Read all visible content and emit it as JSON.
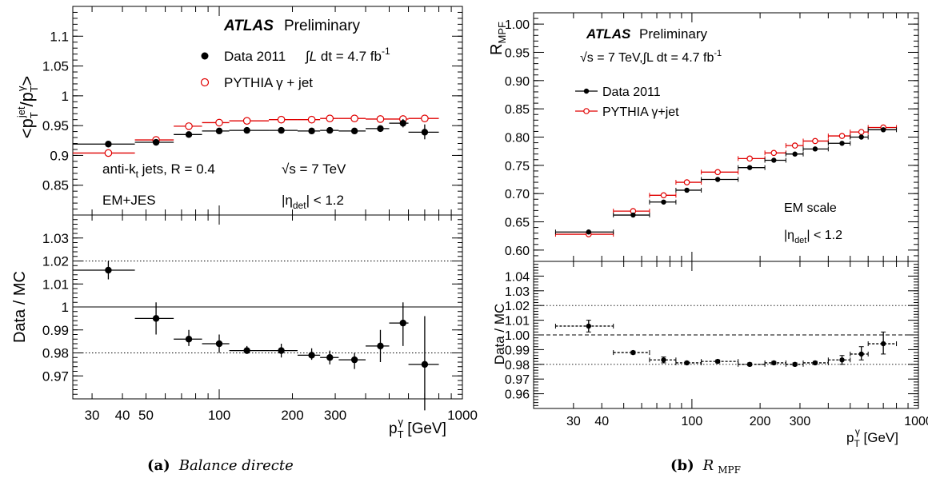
{
  "chart_data": [
    {
      "panel": "a",
      "type": "scatter",
      "caption_tag": "(a)",
      "caption_text": "Balance directe",
      "xlabel": "p_T^γ [GeV]",
      "xscale": "log",
      "xlim": [
        25,
        1000
      ],
      "xticks": [
        30,
        40,
        50,
        100,
        200,
        300,
        1000
      ],
      "xtick_labels": [
        "30",
        "40",
        "50",
        "100",
        "200",
        "300",
        "1000"
      ],
      "top": {
        "ylabel": "<p_T^jet/p_T^γ>",
        "ylim": [
          0.8,
          1.15
        ],
        "yticks": [
          0.85,
          0.9,
          0.95,
          1.0,
          1.05,
          1.1
        ],
        "ytick_labels": [
          "0.85",
          "0.9",
          "0.95",
          "1",
          "1.05",
          "1.1"
        ],
        "annotations": {
          "atlas": "ATLAS",
          "prelim": "Preliminary",
          "lumi": "∫L dt = 4.7 fb⁻¹",
          "algo": "anti-kₜ jets, R = 0.4",
          "sqrt_s": "√s = 7 TeV",
          "calib": "EM+JES",
          "eta": "|η_det| < 1.2"
        },
        "legend": {
          "position": "top-right"
        },
        "series": [
          {
            "name": "Data 2011",
            "color": "#000000",
            "marker": "filled-circle",
            "points": [
              {
                "x": 35,
                "xlo": 25,
                "xhi": 45,
                "y": 0.919
              },
              {
                "x": 55,
                "xlo": 45,
                "xhi": 65,
                "y": 0.922
              },
              {
                "x": 75,
                "xlo": 65,
                "xhi": 85,
                "y": 0.935
              },
              {
                "x": 100,
                "xlo": 85,
                "xhi": 110,
                "y": 0.941
              },
              {
                "x": 130,
                "xlo": 110,
                "xhi": 160,
                "y": 0.942
              },
              {
                "x": 180,
                "xlo": 160,
                "xhi": 210,
                "y": 0.942
              },
              {
                "x": 240,
                "xlo": 210,
                "xhi": 260,
                "y": 0.941
              },
              {
                "x": 285,
                "xlo": 260,
                "xhi": 310,
                "y": 0.942
              },
              {
                "x": 360,
                "xlo": 310,
                "xhi": 400,
                "y": 0.941
              },
              {
                "x": 460,
                "xlo": 400,
                "xhi": 500,
                "y": 0.945
              },
              {
                "x": 570,
                "xlo": 500,
                "xhi": 600,
                "y": 0.954,
                "ylo": 0.947,
                "yhi": 0.961
              },
              {
                "x": 700,
                "xlo": 600,
                "xhi": 800,
                "y": 0.939,
                "ylo": 0.927,
                "yhi": 0.952
              }
            ]
          },
          {
            "name": "PYTHIA γ + jet",
            "color": "#e00000",
            "marker": "open-circle",
            "points": [
              {
                "x": 35,
                "xlo": 25,
                "xhi": 45,
                "y": 0.904
              },
              {
                "x": 55,
                "xlo": 45,
                "xhi": 65,
                "y": 0.926
              },
              {
                "x": 75,
                "xlo": 65,
                "xhi": 85,
                "y": 0.949
              },
              {
                "x": 100,
                "xlo": 85,
                "xhi": 110,
                "y": 0.955
              },
              {
                "x": 130,
                "xlo": 110,
                "xhi": 160,
                "y": 0.958
              },
              {
                "x": 180,
                "xlo": 160,
                "xhi": 210,
                "y": 0.96
              },
              {
                "x": 240,
                "xlo": 210,
                "xhi": 260,
                "y": 0.96
              },
              {
                "x": 285,
                "xlo": 260,
                "xhi": 310,
                "y": 0.962
              },
              {
                "x": 360,
                "xlo": 310,
                "xhi": 400,
                "y": 0.962
              },
              {
                "x": 460,
                "xlo": 400,
                "xhi": 500,
                "y": 0.961
              },
              {
                "x": 570,
                "xlo": 500,
                "xhi": 600,
                "y": 0.961
              },
              {
                "x": 700,
                "xlo": 600,
                "xhi": 800,
                "y": 0.962
              }
            ]
          }
        ]
      },
      "ratio": {
        "ylabel": "Data / MC",
        "ylim": [
          0.96,
          1.04
        ],
        "yticks": [
          0.97,
          0.98,
          0.99,
          1.0,
          1.01,
          1.02,
          1.03
        ],
        "ytick_labels": [
          "0.97",
          "0.98",
          "0.99",
          "1",
          "1.01",
          "1.02",
          "1.03"
        ],
        "reference_lines": [
          {
            "y": 1.0,
            "style": "solid"
          },
          {
            "y": 0.98,
            "style": "dotted"
          },
          {
            "y": 1.02,
            "style": "dotted"
          }
        ],
        "points": [
          {
            "x": 35,
            "xlo": 25,
            "xhi": 45,
            "y": 1.016,
            "ylo": 1.012,
            "yhi": 1.02
          },
          {
            "x": 55,
            "xlo": 45,
            "xhi": 65,
            "y": 0.995,
            "ylo": 0.988,
            "yhi": 1.002
          },
          {
            "x": 75,
            "xlo": 65,
            "xhi": 85,
            "y": 0.986,
            "ylo": 0.983,
            "yhi": 0.99
          },
          {
            "x": 100,
            "xlo": 85,
            "xhi": 110,
            "y": 0.984,
            "ylo": 0.98,
            "yhi": 0.988
          },
          {
            "x": 130,
            "xlo": 110,
            "xhi": 160,
            "y": 0.981,
            "ylo": 0.98,
            "yhi": 0.983
          },
          {
            "x": 180,
            "xlo": 160,
            "xhi": 210,
            "y": 0.981,
            "ylo": 0.978,
            "yhi": 0.984
          },
          {
            "x": 240,
            "xlo": 210,
            "xhi": 260,
            "y": 0.979,
            "ylo": 0.977,
            "yhi": 0.982
          },
          {
            "x": 285,
            "xlo": 260,
            "xhi": 310,
            "y": 0.978,
            "ylo": 0.975,
            "yhi": 0.981
          },
          {
            "x": 360,
            "xlo": 310,
            "xhi": 400,
            "y": 0.977,
            "ylo": 0.973,
            "yhi": 0.98
          },
          {
            "x": 460,
            "xlo": 400,
            "xhi": 500,
            "y": 0.983,
            "ylo": 0.976,
            "yhi": 0.99
          },
          {
            "x": 570,
            "xlo": 500,
            "xhi": 600,
            "y": 0.993,
            "ylo": 0.983,
            "yhi": 1.002
          },
          {
            "x": 700,
            "xlo": 600,
            "xhi": 800,
            "y": 0.975,
            "ylo": 0.955,
            "yhi": 0.996
          }
        ]
      }
    },
    {
      "panel": "b",
      "type": "scatter",
      "caption_tag": "(b)",
      "caption_text": "R",
      "caption_sub": "MPF",
      "xlabel": "p_T^γ [GeV]",
      "xscale": "log",
      "xlim": [
        20,
        1000
      ],
      "xticks": [
        30,
        40,
        100,
        200,
        300,
        1000
      ],
      "xtick_labels": [
        "30",
        "40",
        "100",
        "200",
        "300",
        "1000"
      ],
      "top": {
        "ylabel": "R_MPF",
        "ylim": [
          0.58,
          1.02
        ],
        "yticks": [
          0.6,
          0.65,
          0.7,
          0.75,
          0.8,
          0.85,
          0.9,
          0.95,
          1.0
        ],
        "ytick_labels": [
          "0.60",
          "0.65",
          "0.70",
          "0.75",
          "0.80",
          "0.85",
          "0.90",
          "0.95",
          "1.00"
        ],
        "annotations": {
          "atlas": "ATLAS",
          "prelim": "Preliminary",
          "energy_lumi": "√s = 7 TeV,∫L dt = 4.7 fb⁻¹",
          "calib": "EM scale",
          "eta": "|η_det| < 1.2"
        },
        "legend": {
          "position": "top-left"
        },
        "series": [
          {
            "name": "Data 2011",
            "color": "#000000",
            "marker": "filled-circle",
            "points": [
              {
                "x": 35,
                "xlo": 25,
                "xhi": 45,
                "y": 0.632
              },
              {
                "x": 55,
                "xlo": 45,
                "xhi": 65,
                "y": 0.662
              },
              {
                "x": 75,
                "xlo": 65,
                "xhi": 85,
                "y": 0.685
              },
              {
                "x": 95,
                "xlo": 85,
                "xhi": 110,
                "y": 0.706
              },
              {
                "x": 130,
                "xlo": 110,
                "xhi": 160,
                "y": 0.725
              },
              {
                "x": 180,
                "xlo": 160,
                "xhi": 210,
                "y": 0.746
              },
              {
                "x": 230,
                "xlo": 210,
                "xhi": 260,
                "y": 0.759
              },
              {
                "x": 285,
                "xlo": 260,
                "xhi": 310,
                "y": 0.77
              },
              {
                "x": 350,
                "xlo": 310,
                "xhi": 400,
                "y": 0.779
              },
              {
                "x": 460,
                "xlo": 400,
                "xhi": 500,
                "y": 0.789
              },
              {
                "x": 560,
                "xlo": 500,
                "xhi": 600,
                "y": 0.8
              },
              {
                "x": 700,
                "xlo": 600,
                "xhi": 800,
                "y": 0.813
              }
            ]
          },
          {
            "name": "PYTHIA γ+jet",
            "color": "#e00000",
            "marker": "open-circle",
            "points": [
              {
                "x": 35,
                "xlo": 25,
                "xhi": 45,
                "y": 0.628
              },
              {
                "x": 55,
                "xlo": 45,
                "xhi": 65,
                "y": 0.669
              },
              {
                "x": 75,
                "xlo": 65,
                "xhi": 85,
                "y": 0.697
              },
              {
                "x": 95,
                "xlo": 85,
                "xhi": 110,
                "y": 0.72
              },
              {
                "x": 130,
                "xlo": 110,
                "xhi": 160,
                "y": 0.738
              },
              {
                "x": 180,
                "xlo": 160,
                "xhi": 210,
                "y": 0.762
              },
              {
                "x": 230,
                "xlo": 210,
                "xhi": 260,
                "y": 0.772
              },
              {
                "x": 285,
                "xlo": 260,
                "xhi": 310,
                "y": 0.785
              },
              {
                "x": 350,
                "xlo": 310,
                "xhi": 400,
                "y": 0.793
              },
              {
                "x": 460,
                "xlo": 400,
                "xhi": 500,
                "y": 0.802
              },
              {
                "x": 560,
                "xlo": 500,
                "xhi": 600,
                "y": 0.809
              },
              {
                "x": 700,
                "xlo": 600,
                "xhi": 800,
                "y": 0.817
              }
            ]
          }
        ]
      },
      "ratio": {
        "ylabel": "Data / MC",
        "ylim": [
          0.95,
          1.05
        ],
        "yticks": [
          0.96,
          0.97,
          0.98,
          0.99,
          1.0,
          1.01,
          1.02,
          1.03,
          1.04
        ],
        "ytick_labels": [
          "0.96",
          "0.97",
          "0.98",
          "0.99",
          "1.00",
          "1.01",
          "1.02",
          "1.03",
          "1.04"
        ],
        "reference_lines": [
          {
            "y": 1.0,
            "style": "dashed"
          },
          {
            "y": 0.98,
            "style": "dotted"
          },
          {
            "y": 1.02,
            "style": "dotted"
          }
        ],
        "points": [
          {
            "x": 35,
            "xlo": 25,
            "xhi": 45,
            "y": 1.006,
            "ylo": 1.002,
            "yhi": 1.01
          },
          {
            "x": 55,
            "xlo": 45,
            "xhi": 65,
            "y": 0.988,
            "ylo": 0.987,
            "yhi": 0.989
          },
          {
            "x": 75,
            "xlo": 65,
            "xhi": 85,
            "y": 0.983,
            "ylo": 0.981,
            "yhi": 0.985
          },
          {
            "x": 95,
            "xlo": 85,
            "xhi": 110,
            "y": 0.981,
            "ylo": 0.98,
            "yhi": 0.982
          },
          {
            "x": 130,
            "xlo": 110,
            "xhi": 160,
            "y": 0.982,
            "ylo": 0.981,
            "yhi": 0.983
          },
          {
            "x": 180,
            "xlo": 160,
            "xhi": 210,
            "y": 0.98,
            "ylo": 0.979,
            "yhi": 0.981
          },
          {
            "x": 230,
            "xlo": 210,
            "xhi": 260,
            "y": 0.981,
            "ylo": 0.98,
            "yhi": 0.982
          },
          {
            "x": 285,
            "xlo": 260,
            "xhi": 310,
            "y": 0.98,
            "ylo": 0.979,
            "yhi": 0.981
          },
          {
            "x": 350,
            "xlo": 310,
            "xhi": 400,
            "y": 0.981,
            "ylo": 0.98,
            "yhi": 0.982
          },
          {
            "x": 460,
            "xlo": 400,
            "xhi": 500,
            "y": 0.983,
            "ylo": 0.98,
            "yhi": 0.986
          },
          {
            "x": 560,
            "xlo": 500,
            "xhi": 600,
            "y": 0.987,
            "ylo": 0.983,
            "yhi": 0.992
          },
          {
            "x": 700,
            "xlo": 600,
            "xhi": 800,
            "y": 0.994,
            "ylo": 0.987,
            "yhi": 1.002
          }
        ]
      }
    }
  ]
}
